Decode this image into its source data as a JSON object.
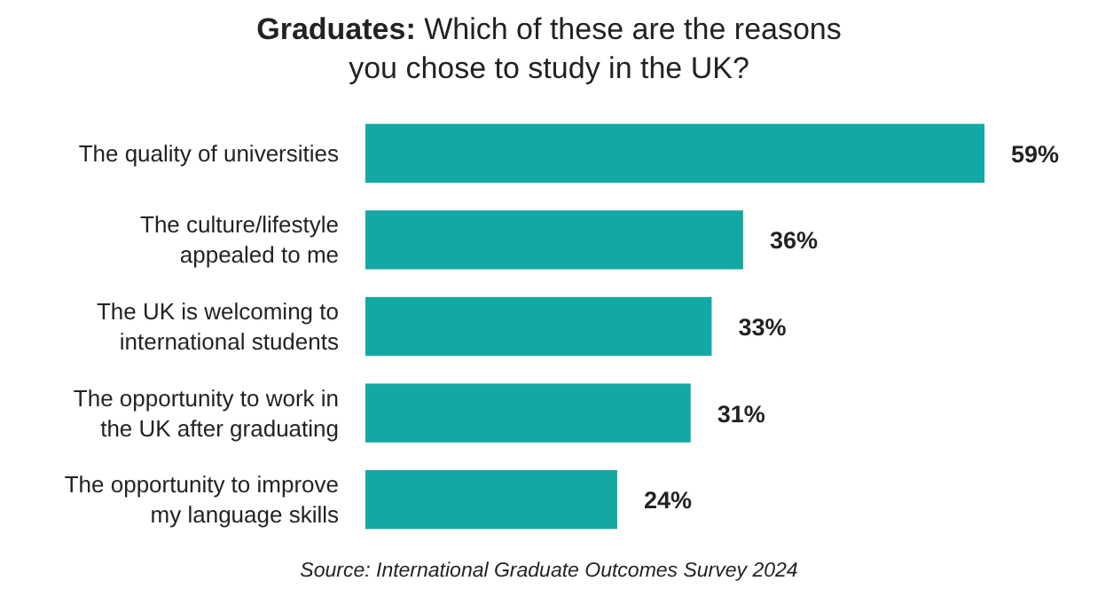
{
  "chart_data": {
    "type": "bar",
    "orientation": "horizontal",
    "title": "Graduates: Which of these are the reasons you chose to study in the UK?",
    "categories": [
      "The quality of universities",
      "The culture/lifestyle appealed to me",
      "The UK is welcoming to international students",
      "The opportunity to work in the UK after graduating",
      "The opportunity to improve my language skills"
    ],
    "values": [
      59,
      36,
      33,
      31,
      24
    ],
    "value_labels": [
      "59%",
      "36%",
      "33%",
      "31%",
      "24%"
    ],
    "color": "#14a8a4",
    "annotations": [
      "Source: International Graduate Outcomes Survey 2024"
    ]
  }
}
